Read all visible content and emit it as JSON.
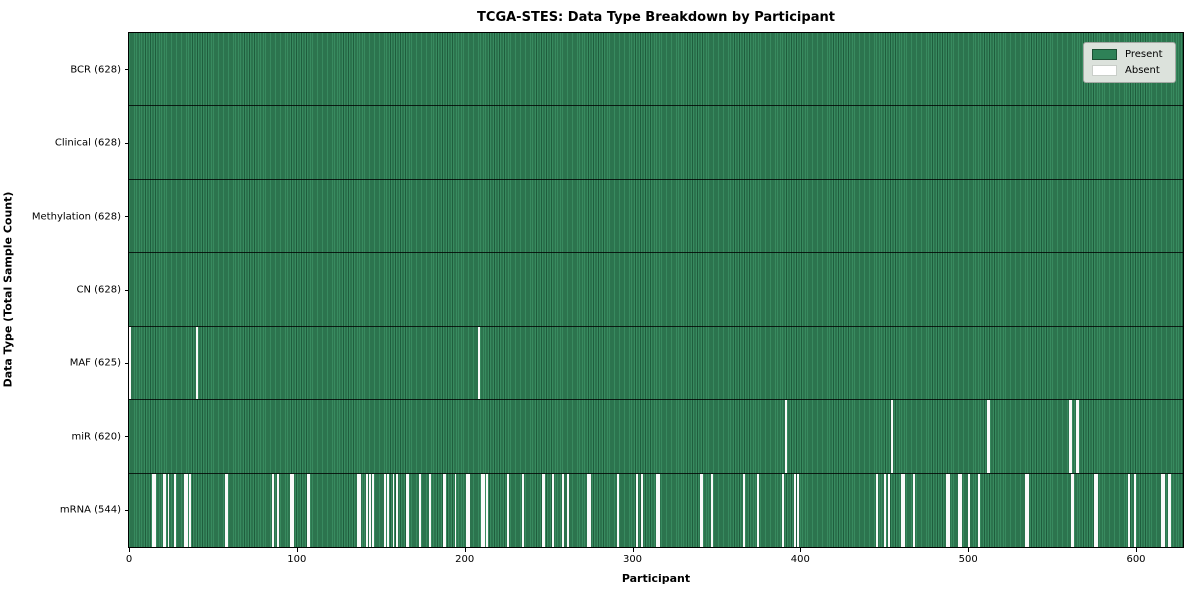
{
  "title": "TCGA-STES: Data Type Breakdown by Participant",
  "axes": {
    "xlabel": "Participant",
    "ylabel": "Data Type (Total Sample Count)"
  },
  "legend": {
    "items": [
      {
        "label": "Present",
        "color": "#2e8157",
        "edge": "#1b4f33"
      },
      {
        "label": "Absent",
        "color": "#ffffff",
        "edge": "#c9cec9"
      }
    ]
  },
  "colors": {
    "present_fill": "#2e7e52",
    "present_stripe_light": "#388a5f",
    "present_stripe_dark": "#1f5e3d",
    "absent_fill": "#fafafa",
    "legend_bg": "#dce2dc"
  },
  "chart_data": {
    "type": "heatmap",
    "title": "TCGA-STES: Data Type Breakdown by Participant",
    "xlabel": "Participant",
    "ylabel": "Data Type (Total Sample Count)",
    "xlim": [
      0,
      628
    ],
    "x_ticks": [
      0,
      100,
      200,
      300,
      400,
      500,
      600
    ],
    "n_participants": 628,
    "grid": false,
    "legend_position": "upper right",
    "cell_states": [
      "Present",
      "Absent"
    ],
    "rows": [
      {
        "label": "BCR (628)",
        "data_type": "BCR",
        "present_count": 628,
        "absent_participants": []
      },
      {
        "label": "Clinical (628)",
        "data_type": "Clinical",
        "present_count": 628,
        "absent_participants": []
      },
      {
        "label": "Methylation (628)",
        "data_type": "Methylation",
        "present_count": 628,
        "absent_participants": []
      },
      {
        "label": "CN (628)",
        "data_type": "CN",
        "present_count": 628,
        "absent_participants": []
      },
      {
        "label": "MAF (625)",
        "data_type": "MAF",
        "present_count": 625,
        "absent_participants": [
          0,
          40,
          208
        ]
      },
      {
        "label": "miR (620)",
        "data_type": "miR",
        "present_count": 620,
        "absent_participants": [
          391,
          454,
          511,
          512,
          560,
          561,
          564,
          565
        ]
      },
      {
        "label": "mRNA (544)",
        "data_type": "mRNA",
        "present_count": 544,
        "absent_participants": [
          14,
          15,
          20,
          21,
          23,
          27,
          33,
          34,
          36,
          57,
          58,
          85,
          88,
          96,
          97,
          106,
          107,
          136,
          137,
          141,
          143,
          145,
          152,
          154,
          157,
          159,
          165,
          166,
          173,
          179,
          187,
          188,
          194,
          201,
          202,
          210,
          211,
          213,
          225,
          234,
          246,
          247,
          252,
          258,
          261,
          273,
          274,
          291,
          302,
          305,
          314,
          315,
          340,
          341,
          347,
          366,
          374,
          389,
          396,
          398,
          445,
          450,
          452,
          460,
          461,
          467,
          487,
          488,
          494,
          495,
          500,
          506,
          534,
          535,
          561,
          562,
          575,
          576,
          595,
          599,
          615,
          616,
          619,
          620
        ]
      }
    ]
  }
}
